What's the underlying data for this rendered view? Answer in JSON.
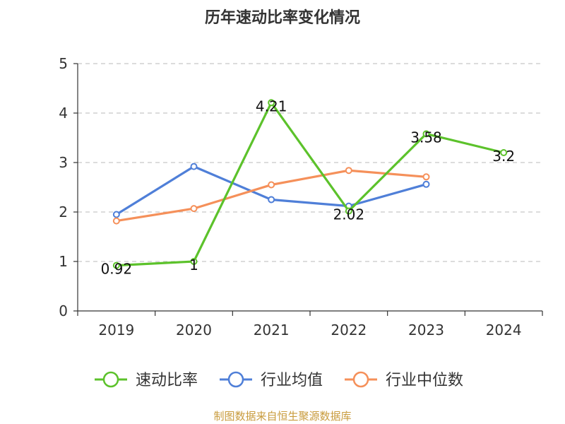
{
  "colors": {
    "green": "#5cc22b",
    "blue": "#4f7fd8",
    "orange": "#f5905a",
    "axis": "#333333",
    "grid": "#c8c8c8",
    "source": "#c89b3c"
  },
  "chart_data": {
    "type": "line",
    "title": "历年速动比率变化情况",
    "categories": [
      "2019",
      "2020",
      "2021",
      "2022",
      "2023",
      "2024"
    ],
    "ylim": [
      0,
      5
    ],
    "yticks": [
      "0",
      "1",
      "2",
      "3",
      "4",
      "5"
    ],
    "grid": true,
    "legend_position": "bottom",
    "series": [
      {
        "name": "速动比率",
        "color": "#5cc22b",
        "values": [
          0.92,
          1,
          4.21,
          2.02,
          3.58,
          3.2
        ],
        "labels": [
          "0.92",
          "1",
          "4.21",
          "2.02",
          "3.58",
          "3.2"
        ]
      },
      {
        "name": "行业均值",
        "color": "#4f7fd8",
        "values": [
          1.95,
          2.92,
          2.25,
          2.12,
          2.56,
          null
        ]
      },
      {
        "name": "行业中位数",
        "color": "#f5905a",
        "values": [
          1.82,
          2.07,
          2.55,
          2.84,
          2.71,
          null
        ]
      }
    ]
  },
  "source": "制图数据来自恒生聚源数据库"
}
